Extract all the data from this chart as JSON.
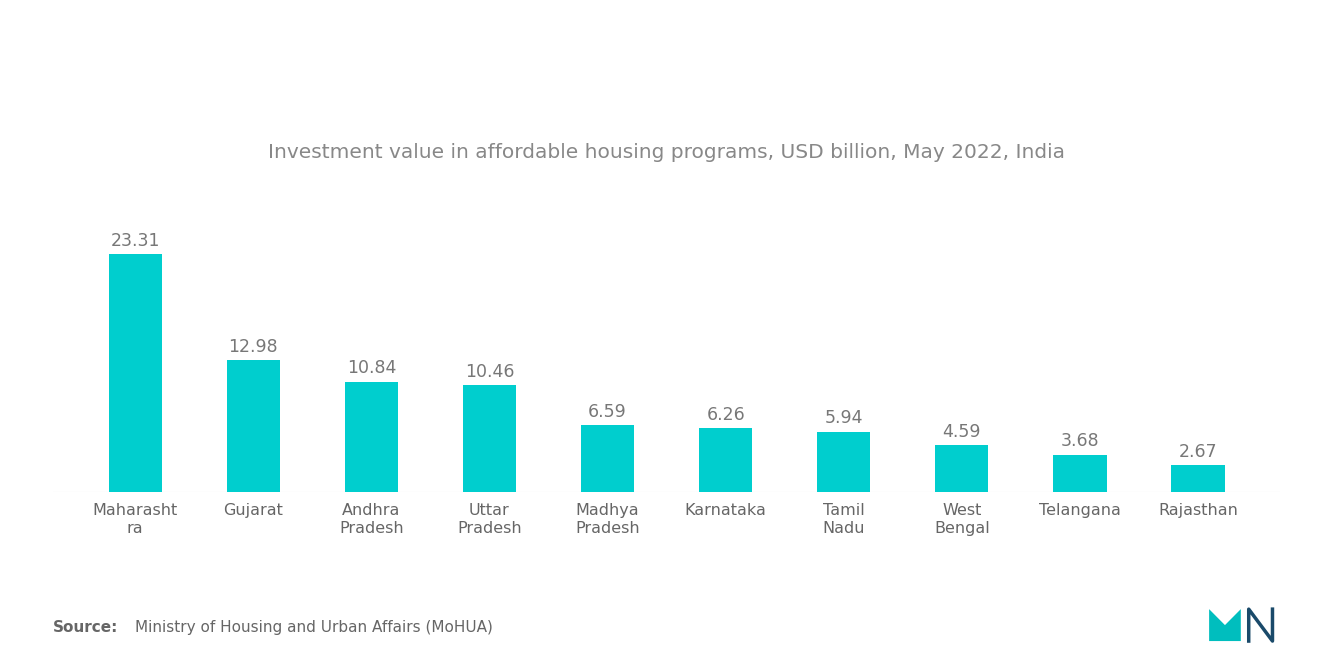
{
  "title": "Investment value in affordable housing programs, USD billion, May 2022, India",
  "categories": [
    "Maharasht\nra",
    "Gujarat",
    "Andhra\nPradesh",
    "Uttar\nPradesh",
    "Madhya\nPradesh",
    "Karnataka",
    "Tamil\nNadu",
    "West\nBengal",
    "Telangana",
    "Rajasthan"
  ],
  "values": [
    23.31,
    12.98,
    10.84,
    10.46,
    6.59,
    6.26,
    5.94,
    4.59,
    3.68,
    2.67
  ],
  "bar_color": "#00CECE",
  "value_color": "#777777",
  "title_color": "#888888",
  "label_color": "#666666",
  "background_color": "#ffffff",
  "source_bold": "Source:",
  "source_text": "Ministry of Housing and Urban Affairs (MoHUA)",
  "title_fontsize": 14.5,
  "value_fontsize": 12.5,
  "label_fontsize": 11.5,
  "source_fontsize": 11,
  "ylim": [
    0,
    30
  ]
}
